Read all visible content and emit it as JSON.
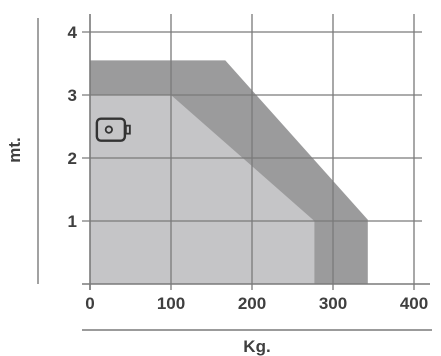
{
  "chart_data": {
    "type": "area",
    "xlabel": "Kg.",
    "ylabel": "mt.",
    "xlim": [
      0,
      400
    ],
    "ylim": [
      0,
      4
    ],
    "x_ticks": [
      0,
      100,
      200,
      300,
      400
    ],
    "y_ticks": [
      1,
      2,
      3,
      4
    ],
    "grid": true,
    "series": [
      {
        "points": [
          [
            0,
            0
          ],
          [
            0,
            3.55
          ],
          [
            167,
            3.55
          ],
          [
            343,
            1.02
          ],
          [
            343,
            0
          ]
        ],
        "color": "#9b9b9c"
      },
      {
        "points": [
          [
            0,
            0
          ],
          [
            0,
            3.0
          ],
          [
            100,
            3.0
          ],
          [
            277,
            1.0
          ],
          [
            277,
            0
          ]
        ],
        "color": "#c5c5c7"
      }
    ],
    "icon": {
      "name": "counterweight-icon",
      "x": 27,
      "y": 2.45
    },
    "colors": {
      "grid": "#7a7a7a",
      "text": "#3f3f3f",
      "icon": "#333333"
    }
  }
}
